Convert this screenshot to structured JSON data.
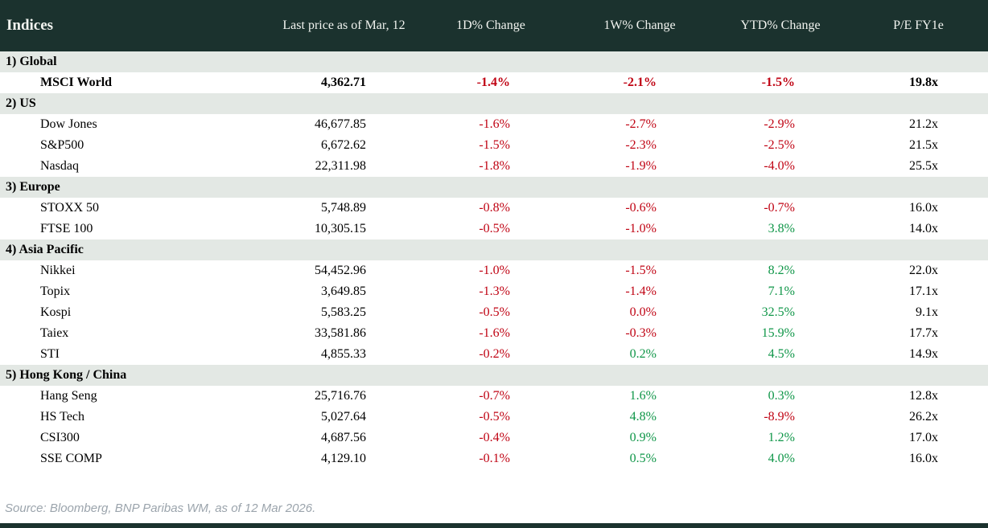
{
  "colors": {
    "header_bg": "#1b322e",
    "section_bg": "#e3e8e4",
    "negative": "#c00414",
    "positive": "#0f9648",
    "source_text": "#9ba4ac"
  },
  "table": {
    "title": "Indices",
    "columns": [
      "Last price as of Mar, 12",
      "1D% Change",
      "1W% Change",
      "YTD% Change",
      "P/E FY1e"
    ],
    "sections": [
      {
        "label": "1) Global",
        "rows": [
          {
            "name": "MSCI World",
            "bold": true,
            "price": "4,362.71",
            "d1": {
              "v": "-1.4%",
              "c": "red"
            },
            "w1": {
              "v": "-2.1%",
              "c": "red"
            },
            "ytd": {
              "v": "-1.5%",
              "c": "red"
            },
            "pe": "19.8x"
          }
        ]
      },
      {
        "label": "2) US",
        "rows": [
          {
            "name": "Dow Jones",
            "bold": false,
            "price": "46,677.85",
            "d1": {
              "v": "-1.6%",
              "c": "red"
            },
            "w1": {
              "v": "-2.7%",
              "c": "red"
            },
            "ytd": {
              "v": "-2.9%",
              "c": "red"
            },
            "pe": "21.2x"
          },
          {
            "name": "S&P500",
            "bold": false,
            "price": "6,672.62",
            "d1": {
              "v": "-1.5%",
              "c": "red"
            },
            "w1": {
              "v": "-2.3%",
              "c": "red"
            },
            "ytd": {
              "v": "-2.5%",
              "c": "red"
            },
            "pe": "21.5x"
          },
          {
            "name": "Nasdaq",
            "bold": false,
            "price": "22,311.98",
            "d1": {
              "v": "-1.8%",
              "c": "red"
            },
            "w1": {
              "v": "-1.9%",
              "c": "red"
            },
            "ytd": {
              "v": "-4.0%",
              "c": "red"
            },
            "pe": "25.5x"
          }
        ]
      },
      {
        "label": "3) Europe",
        "rows": [
          {
            "name": "STOXX 50",
            "bold": false,
            "price": "5,748.89",
            "d1": {
              "v": "-0.8%",
              "c": "red"
            },
            "w1": {
              "v": "-0.6%",
              "c": "red"
            },
            "ytd": {
              "v": "-0.7%",
              "c": "red"
            },
            "pe": "16.0x"
          },
          {
            "name": "FTSE 100",
            "bold": false,
            "price": "10,305.15",
            "d1": {
              "v": "-0.5%",
              "c": "red"
            },
            "w1": {
              "v": "-1.0%",
              "c": "red"
            },
            "ytd": {
              "v": "3.8%",
              "c": "green"
            },
            "pe": "14.0x"
          }
        ]
      },
      {
        "label": "4) Asia Pacific",
        "rows": [
          {
            "name": "Nikkei",
            "bold": false,
            "price": "54,452.96",
            "d1": {
              "v": "-1.0%",
              "c": "red"
            },
            "w1": {
              "v": "-1.5%",
              "c": "red"
            },
            "ytd": {
              "v": "8.2%",
              "c": "green"
            },
            "pe": "22.0x"
          },
          {
            "name": "Topix",
            "bold": false,
            "price": "3,649.85",
            "d1": {
              "v": "-1.3%",
              "c": "red"
            },
            "w1": {
              "v": "-1.4%",
              "c": "red"
            },
            "ytd": {
              "v": "7.1%",
              "c": "green"
            },
            "pe": "17.1x"
          },
          {
            "name": "Kospi",
            "bold": false,
            "price": "5,583.25",
            "d1": {
              "v": "-0.5%",
              "c": "red"
            },
            "w1": {
              "v": "0.0%",
              "c": "red"
            },
            "ytd": {
              "v": "32.5%",
              "c": "green"
            },
            "pe": "9.1x"
          },
          {
            "name": "Taiex",
            "bold": false,
            "price": "33,581.86",
            "d1": {
              "v": "-1.6%",
              "c": "red"
            },
            "w1": {
              "v": "-0.3%",
              "c": "red"
            },
            "ytd": {
              "v": "15.9%",
              "c": "green"
            },
            "pe": "17.7x"
          },
          {
            "name": "STI",
            "bold": false,
            "price": "4,855.33",
            "d1": {
              "v": "-0.2%",
              "c": "red"
            },
            "w1": {
              "v": "0.2%",
              "c": "green"
            },
            "ytd": {
              "v": "4.5%",
              "c": "green"
            },
            "pe": "14.9x"
          }
        ]
      },
      {
        "label": "5) Hong Kong / China",
        "rows": [
          {
            "name": "Hang Seng",
            "bold": false,
            "price": "25,716.76",
            "d1": {
              "v": "-0.7%",
              "c": "red"
            },
            "w1": {
              "v": "1.6%",
              "c": "green"
            },
            "ytd": {
              "v": "0.3%",
              "c": "green"
            },
            "pe": "12.8x"
          },
          {
            "name": "HS Tech",
            "bold": false,
            "price": "5,027.64",
            "d1": {
              "v": "-0.5%",
              "c": "red"
            },
            "w1": {
              "v": "4.8%",
              "c": "green"
            },
            "ytd": {
              "v": "-8.9%",
              "c": "red"
            },
            "pe": "26.2x"
          },
          {
            "name": "CSI300",
            "bold": false,
            "price": "4,687.56",
            "d1": {
              "v": "-0.4%",
              "c": "red"
            },
            "w1": {
              "v": "0.9%",
              "c": "green"
            },
            "ytd": {
              "v": "1.2%",
              "c": "green"
            },
            "pe": "17.0x"
          },
          {
            "name": "SSE COMP",
            "bold": false,
            "price": "4,129.10",
            "d1": {
              "v": "-0.1%",
              "c": "red"
            },
            "w1": {
              "v": "0.5%",
              "c": "green"
            },
            "ytd": {
              "v": "4.0%",
              "c": "green"
            },
            "pe": "16.0x"
          }
        ]
      }
    ]
  },
  "footer": {
    "source": "Source: Bloomberg, BNP Paribas WM, as of 12 Mar 2026."
  },
  "chart_data": {
    "type": "table",
    "title": "Indices",
    "columns": [
      "Indices",
      "Last price as of Mar, 12",
      "1D% Change",
      "1W% Change",
      "YTD% Change",
      "P/E FY1e"
    ],
    "rows": [
      {
        "section": "1) Global",
        "index": "MSCI World",
        "last_price": 4362.71,
        "change_1d_pct": -1.4,
        "change_1w_pct": -2.1,
        "change_ytd_pct": -1.5,
        "pe_fy1e": 19.8
      },
      {
        "section": "2) US",
        "index": "Dow Jones",
        "last_price": 46677.85,
        "change_1d_pct": -1.6,
        "change_1w_pct": -2.7,
        "change_ytd_pct": -2.9,
        "pe_fy1e": 21.2
      },
      {
        "section": "2) US",
        "index": "S&P500",
        "last_price": 6672.62,
        "change_1d_pct": -1.5,
        "change_1w_pct": -2.3,
        "change_ytd_pct": -2.5,
        "pe_fy1e": 21.5
      },
      {
        "section": "2) US",
        "index": "Nasdaq",
        "last_price": 22311.98,
        "change_1d_pct": -1.8,
        "change_1w_pct": -1.9,
        "change_ytd_pct": -4.0,
        "pe_fy1e": 25.5
      },
      {
        "section": "3) Europe",
        "index": "STOXX 50",
        "last_price": 5748.89,
        "change_1d_pct": -0.8,
        "change_1w_pct": -0.6,
        "change_ytd_pct": -0.7,
        "pe_fy1e": 16.0
      },
      {
        "section": "3) Europe",
        "index": "FTSE 100",
        "last_price": 10305.15,
        "change_1d_pct": -0.5,
        "change_1w_pct": -1.0,
        "change_ytd_pct": 3.8,
        "pe_fy1e": 14.0
      },
      {
        "section": "4) Asia Pacific",
        "index": "Nikkei",
        "last_price": 54452.96,
        "change_1d_pct": -1.0,
        "change_1w_pct": -1.5,
        "change_ytd_pct": 8.2,
        "pe_fy1e": 22.0
      },
      {
        "section": "4) Asia Pacific",
        "index": "Topix",
        "last_price": 3649.85,
        "change_1d_pct": -1.3,
        "change_1w_pct": -1.4,
        "change_ytd_pct": 7.1,
        "pe_fy1e": 17.1
      },
      {
        "section": "4) Asia Pacific",
        "index": "Kospi",
        "last_price": 5583.25,
        "change_1d_pct": -0.5,
        "change_1w_pct": 0.0,
        "change_ytd_pct": 32.5,
        "pe_fy1e": 9.1
      },
      {
        "section": "4) Asia Pacific",
        "index": "Taiex",
        "last_price": 33581.86,
        "change_1d_pct": -1.6,
        "change_1w_pct": -0.3,
        "change_ytd_pct": 15.9,
        "pe_fy1e": 17.7
      },
      {
        "section": "4) Asia Pacific",
        "index": "STI",
        "last_price": 4855.33,
        "change_1d_pct": -0.2,
        "change_1w_pct": 0.2,
        "change_ytd_pct": 4.5,
        "pe_fy1e": 14.9
      },
      {
        "section": "5) Hong Kong / China",
        "index": "Hang Seng",
        "last_price": 25716.76,
        "change_1d_pct": -0.7,
        "change_1w_pct": 1.6,
        "change_ytd_pct": 0.3,
        "pe_fy1e": 12.8
      },
      {
        "section": "5) Hong Kong / China",
        "index": "HS Tech",
        "last_price": 5027.64,
        "change_1d_pct": -0.5,
        "change_1w_pct": 4.8,
        "change_ytd_pct": -8.9,
        "pe_fy1e": 26.2
      },
      {
        "section": "5) Hong Kong / China",
        "index": "CSI300",
        "last_price": 4687.56,
        "change_1d_pct": -0.4,
        "change_1w_pct": 0.9,
        "change_ytd_pct": 1.2,
        "pe_fy1e": 17.0
      },
      {
        "section": "5) Hong Kong / China",
        "index": "SSE COMP",
        "last_price": 4129.1,
        "change_1d_pct": -0.1,
        "change_1w_pct": 0.5,
        "change_ytd_pct": 4.0,
        "pe_fy1e": 16.0
      }
    ]
  }
}
